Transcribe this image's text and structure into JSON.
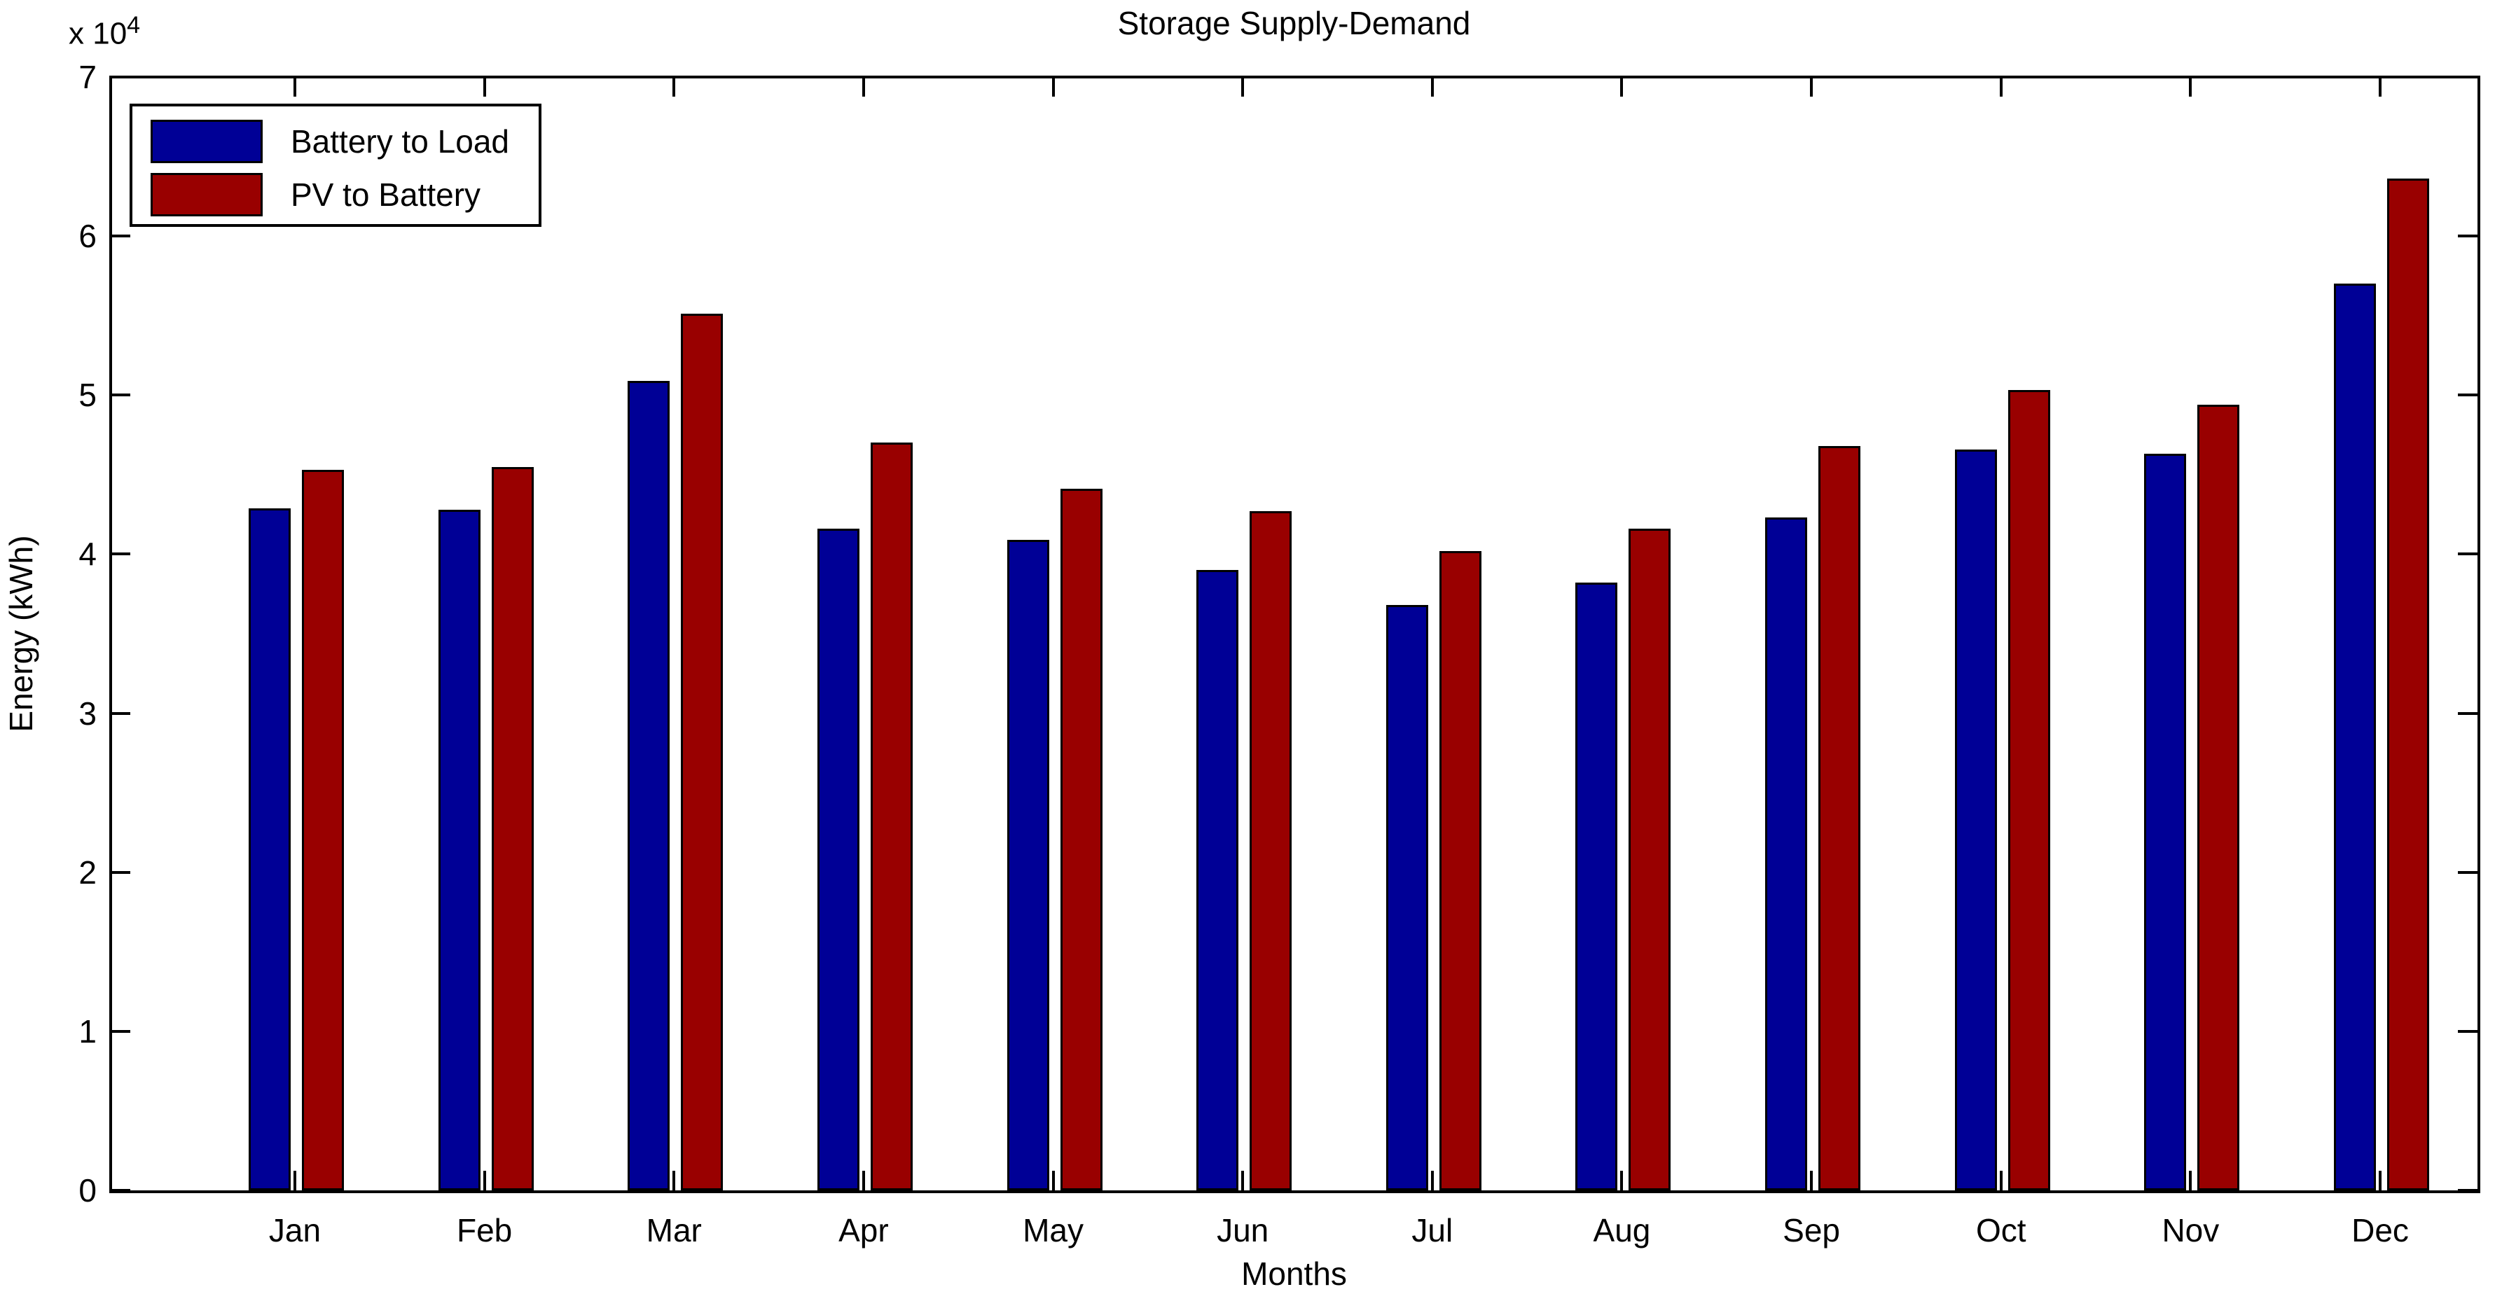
{
  "figure": {
    "exponent_prefix": "x 10",
    "exponent_power": "4"
  },
  "chart_data": {
    "type": "bar",
    "title": "Storage Supply-Demand",
    "xlabel": "Months",
    "ylabel": "Energy (kWh)",
    "categories": [
      "Jan",
      "Feb",
      "Mar",
      "Apr",
      "May",
      "Jun",
      "Jul",
      "Aug",
      "Sep",
      "Oct",
      "Nov",
      "Dec"
    ],
    "series": [
      {
        "name": "Battery to Load",
        "color": "#000096",
        "values": [
          42900,
          42800,
          50900,
          41600,
          40900,
          39000,
          36800,
          38200,
          42300,
          46600,
          46300,
          57000
        ]
      },
      {
        "name": "PV to Battery",
        "color": "#990000",
        "values": [
          45300,
          45500,
          55100,
          47000,
          44100,
          42700,
          40200,
          41600,
          46800,
          50300,
          49400,
          63600
        ]
      }
    ],
    "ylim": [
      0,
      70000
    ],
    "yticks": [
      0,
      10000,
      20000,
      30000,
      40000,
      50000,
      60000,
      70000
    ],
    "ytick_labels": [
      "0",
      "1",
      "2",
      "3",
      "4",
      "5",
      "6",
      "7"
    ],
    "y_multiplier": 10000,
    "y_multiplier_label": "x 10^4",
    "legend_position": "top-left",
    "grid": false,
    "bar_edge_color": "#000000"
  }
}
